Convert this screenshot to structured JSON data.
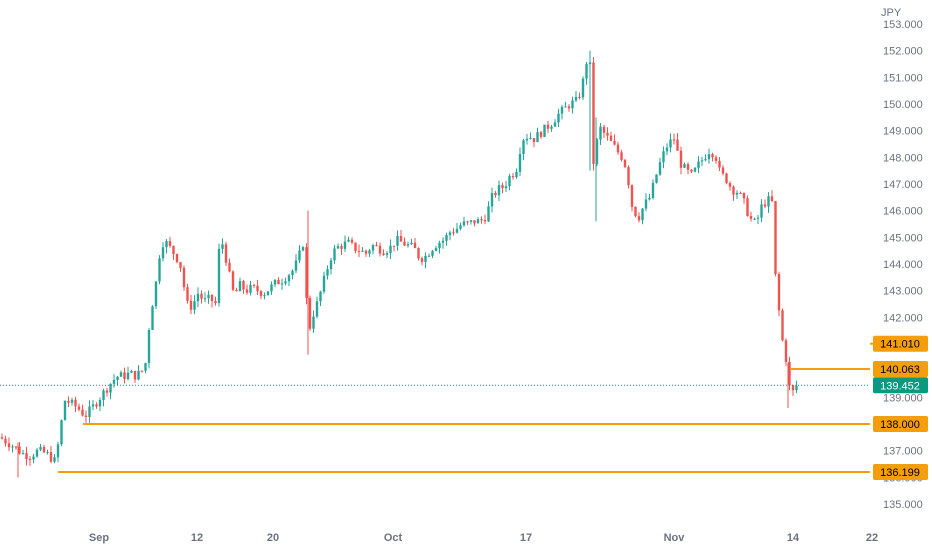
{
  "chart_data": {
    "type": "candlestick",
    "currency": "JPY",
    "y_ticks": [
      "135.000",
      "136.000",
      "137.000",
      "138.000",
      "139.000",
      "140.000",
      "141.000",
      "142.000",
      "143.000",
      "144.000",
      "145.000",
      "146.000",
      "147.000",
      "148.000",
      "149.000",
      "150.000",
      "151.000",
      "152.000",
      "153.000"
    ],
    "x_ticks": [
      "Sep",
      "12",
      "20",
      "Oct",
      "17",
      "Nov",
      "14",
      "22"
    ],
    "ylim": [
      134.5,
      153.3
    ],
    "current_price": {
      "label": "139.452",
      "value": 139.452
    },
    "levels": [
      {
        "label": "141.010",
        "value": 141.01,
        "from": 885
      },
      {
        "label": "140.063",
        "value": 140.063,
        "from": 790
      },
      {
        "label": "138.000",
        "value": 138.0,
        "from": 83
      },
      {
        "label": "136.199",
        "value": 136.199,
        "from": 58
      }
    ],
    "colors": {
      "up": "#26a69a",
      "down": "#ef5350",
      "level": "#f59e0b",
      "current": "#089981",
      "axis_text": "#6b7280"
    },
    "price_path": [
      [
        0,
        137.5
      ],
      [
        8,
        137.3
      ],
      [
        16,
        137.1
      ],
      [
        22,
        136.9
      ],
      [
        30,
        136.8
      ],
      [
        38,
        137.0
      ],
      [
        46,
        136.9
      ],
      [
        55,
        136.6
      ],
      [
        60,
        137.6
      ],
      [
        64,
        138.9
      ],
      [
        70,
        138.8
      ],
      [
        78,
        138.6
      ],
      [
        85,
        138.3
      ],
      [
        92,
        138.6
      ],
      [
        100,
        139.0
      ],
      [
        106,
        139.3
      ],
      [
        112,
        139.6
      ],
      [
        118,
        139.8
      ],
      [
        124,
        139.8
      ],
      [
        130,
        139.9
      ],
      [
        136,
        139.8
      ],
      [
        145,
        140.1
      ],
      [
        150,
        142.0
      ],
      [
        156,
        143.3
      ],
      [
        160,
        144.5
      ],
      [
        164,
        144.9
      ],
      [
        170,
        144.6
      ],
      [
        176,
        144.3
      ],
      [
        182,
        143.8
      ],
      [
        186,
        142.5
      ],
      [
        192,
        142.4
      ],
      [
        198,
        142.9
      ],
      [
        204,
        142.6
      ],
      [
        210,
        142.7
      ],
      [
        216,
        142.5
      ],
      [
        218,
        144.4
      ],
      [
        223,
        144.8
      ],
      [
        228,
        143.8
      ],
      [
        234,
        142.8
      ],
      [
        240,
        143.2
      ],
      [
        246,
        143.0
      ],
      [
        252,
        143.1
      ],
      [
        258,
        143.0
      ],
      [
        264,
        142.9
      ],
      [
        270,
        143.1
      ],
      [
        276,
        143.3
      ],
      [
        282,
        143.4
      ],
      [
        288,
        143.6
      ],
      [
        294,
        143.8
      ],
      [
        300,
        144.4
      ],
      [
        304,
        144.9
      ],
      [
        308,
        141.3
      ],
      [
        312,
        142.0
      ],
      [
        318,
        142.6
      ],
      [
        324,
        143.4
      ],
      [
        330,
        144.2
      ],
      [
        336,
        144.6
      ],
      [
        342,
        144.7
      ],
      [
        348,
        144.8
      ],
      [
        354,
        144.6
      ],
      [
        360,
        144.5
      ],
      [
        366,
        144.4
      ],
      [
        372,
        144.7
      ],
      [
        378,
        144.6
      ],
      [
        384,
        144.5
      ],
      [
        390,
        144.6
      ],
      [
        396,
        144.9
      ],
      [
        402,
        144.8
      ],
      [
        408,
        144.7
      ],
      [
        414,
        144.6
      ],
      [
        420,
        144.2
      ],
      [
        426,
        144.3
      ],
      [
        432,
        144.6
      ],
      [
        438,
        144.8
      ],
      [
        444,
        144.9
      ],
      [
        450,
        145.2
      ],
      [
        456,
        145.3
      ],
      [
        462,
        145.5
      ],
      [
        468,
        145.5
      ],
      [
        474,
        145.6
      ],
      [
        480,
        145.6
      ],
      [
        486,
        145.8
      ],
      [
        492,
        146.5
      ],
      [
        498,
        146.8
      ],
      [
        504,
        146.9
      ],
      [
        510,
        147.3
      ],
      [
        516,
        147.5
      ],
      [
        522,
        148.7
      ],
      [
        528,
        148.8
      ],
      [
        534,
        148.7
      ],
      [
        540,
        148.9
      ],
      [
        546,
        149.1
      ],
      [
        552,
        149.3
      ],
      [
        558,
        149.6
      ],
      [
        564,
        149.8
      ],
      [
        570,
        150.0
      ],
      [
        576,
        150.1
      ],
      [
        580,
        150.4
      ],
      [
        584,
        151.0
      ],
      [
        587,
        151.7
      ],
      [
        590,
        151.4
      ],
      [
        593,
        147.7
      ],
      [
        596,
        148.4
      ],
      [
        600,
        149.1
      ],
      [
        606,
        148.8
      ],
      [
        612,
        148.5
      ],
      [
        618,
        148.2
      ],
      [
        624,
        147.9
      ],
      [
        628,
        147.2
      ],
      [
        632,
        146.2
      ],
      [
        638,
        145.7
      ],
      [
        644,
        146.2
      ],
      [
        650,
        146.5
      ],
      [
        656,
        147.3
      ],
      [
        662,
        148.0
      ],
      [
        668,
        148.5
      ],
      [
        674,
        148.7
      ],
      [
        680,
        147.8
      ],
      [
        686,
        147.5
      ],
      [
        692,
        147.3
      ],
      [
        698,
        147.7
      ],
      [
        704,
        148.0
      ],
      [
        710,
        148.3
      ],
      [
        716,
        148.0
      ],
      [
        720,
        147.4
      ],
      [
        726,
        147.2
      ],
      [
        732,
        146.8
      ],
      [
        738,
        146.7
      ],
      [
        744,
        146.3
      ],
      [
        750,
        145.7
      ],
      [
        756,
        145.5
      ],
      [
        762,
        146.2
      ],
      [
        768,
        146.4
      ],
      [
        772,
        146.3
      ],
      [
        775,
        143.7
      ],
      [
        778,
        142.7
      ],
      [
        781,
        141.3
      ],
      [
        785,
        140.8
      ],
      [
        789,
        139.4
      ],
      [
        793,
        139.2
      ],
      [
        797,
        139.45
      ]
    ]
  }
}
